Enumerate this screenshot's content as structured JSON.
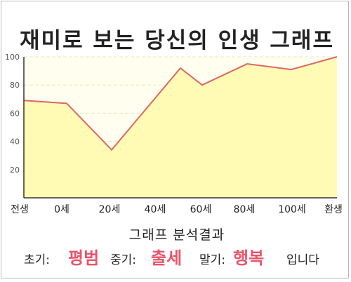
{
  "title": "재미로 보는 당신의 인생 그래프",
  "chart_data": {
    "type": "area",
    "title": "재미로 보는 당신의 인생 그래프",
    "x_tick_labels": [
      "전생",
      "0세",
      "20세",
      "40세",
      "60세",
      "80세",
      "100세",
      "환생"
    ],
    "y_ticks": [
      20,
      40,
      60,
      80,
      100
    ],
    "ylim": [
      0,
      100
    ],
    "points": [
      {
        "x": "전생",
        "y": 69
      },
      {
        "x": "0세",
        "y": 67
      },
      {
        "x": "20세",
        "y": 34
      },
      {
        "x": "약 50세",
        "y": 92
      },
      {
        "x": "60세",
        "y": 80
      },
      {
        "x": "80세",
        "y": 95
      },
      {
        "x": "100세",
        "y": 91
      },
      {
        "x": "환생",
        "y": 100
      }
    ],
    "grid": true,
    "colors": {
      "line": "#e06666",
      "fill": "#fffbb5",
      "background": "#fffeef",
      "grid": "#e8e6c6"
    }
  },
  "analysis": {
    "title": "그래프 분석결과",
    "early_label": "초기:",
    "early_value": "평범",
    "mid_label": "중기:",
    "mid_value": "출세",
    "late_label": "말기:",
    "late_value": "행복",
    "ending": "입니다",
    "accent_color": "#e8556a"
  }
}
